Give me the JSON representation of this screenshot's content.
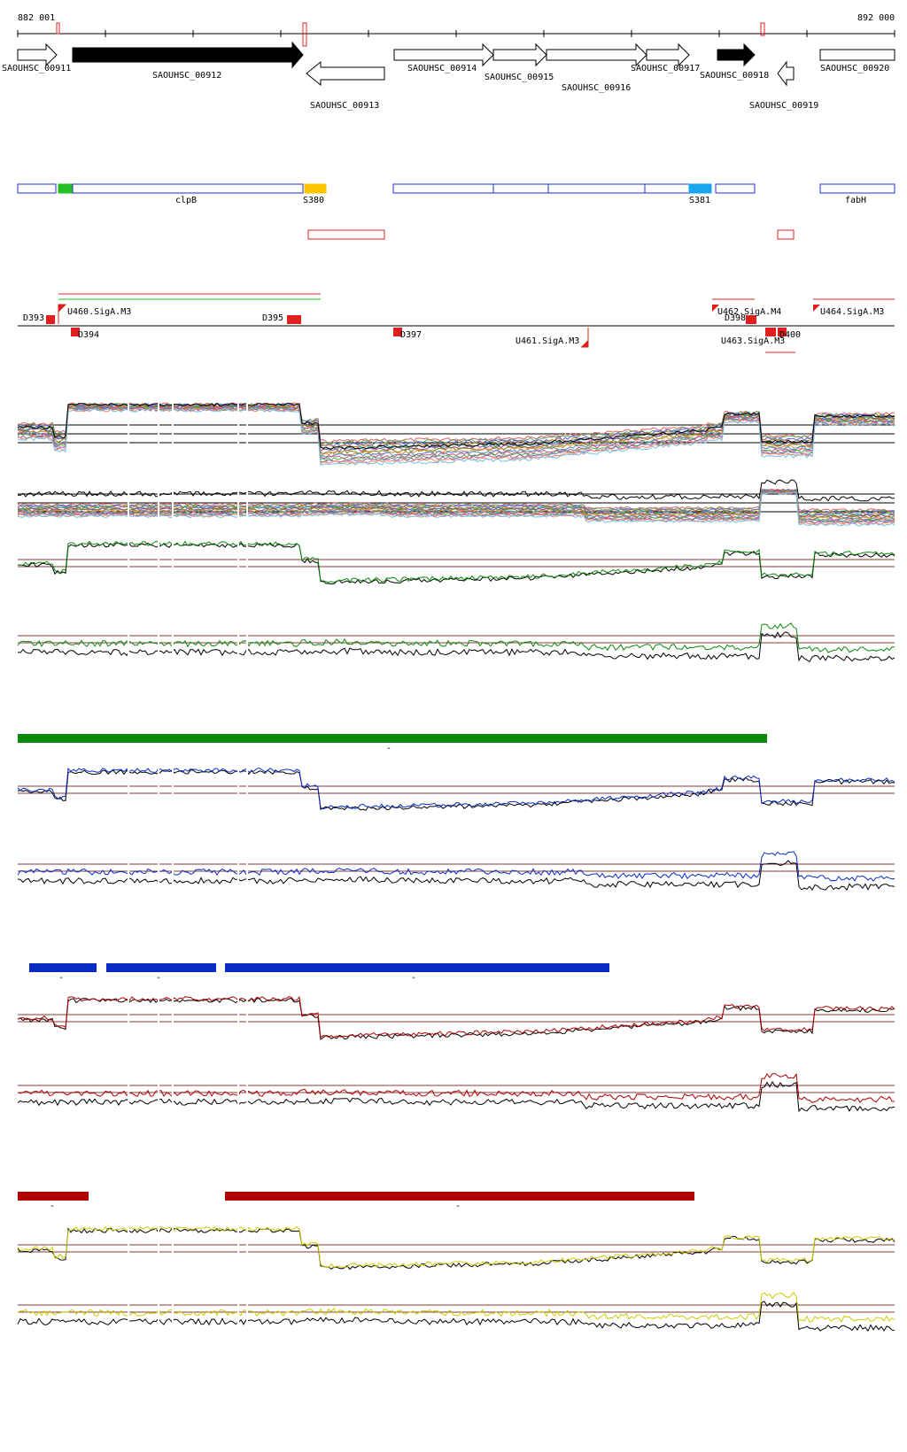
{
  "coords": {
    "start": "882 001",
    "end": "892 000"
  },
  "colors": {
    "gene_fill": "#000000",
    "domain_blue": "#1f2fd0",
    "domain_green": "#22c022",
    "domain_orange": "#ffc400",
    "domain_cyan": "#19a6ef",
    "feature_red": "#e02020",
    "green_track": "#0a8a0a",
    "blue_track": "#0a2cc4",
    "red_track": "#b00000",
    "yellow_track": "#cccc00",
    "threshold": "#8b3a3a"
  },
  "genes": [
    {
      "label": "SAOUHSC_00911",
      "strand": "+",
      "filled": false
    },
    {
      "label": "SAOUHSC_00912",
      "strand": "+",
      "filled": true
    },
    {
      "label": "SAOUHSC_00913",
      "strand": "-",
      "filled": false
    },
    {
      "label": "SAOUHSC_00914",
      "strand": "+",
      "filled": false
    },
    {
      "label": "SAOUHSC_00915",
      "strand": "+",
      "filled": false
    },
    {
      "label": "SAOUHSC_00916",
      "strand": "+",
      "filled": false
    },
    {
      "label": "SAOUHSC_00917",
      "strand": "+",
      "filled": false
    },
    {
      "label": "SAOUHSC_00918",
      "strand": "+",
      "filled": true
    },
    {
      "label": "SAOUHSC_00919",
      "strand": "-",
      "filled": false
    },
    {
      "label": "SAOUHSC_00920",
      "strand": "+",
      "filled": false
    }
  ],
  "domain_labels": [
    "clpB",
    "S380",
    "S381",
    "fabH"
  ],
  "features": {
    "above": [
      "D393",
      "U460.SigA.M3",
      "D395",
      "U462.SigA.M4",
      "D398",
      "U464.SigA.M3"
    ],
    "below": [
      "D394",
      "D397",
      "U461.SigA.M3",
      "U463.SigA.M3",
      "D400"
    ]
  },
  "segment_marks": {
    "green": [
      "-"
    ],
    "blue": [
      "-",
      "-",
      "-"
    ],
    "red": [
      "-",
      "-"
    ]
  }
}
